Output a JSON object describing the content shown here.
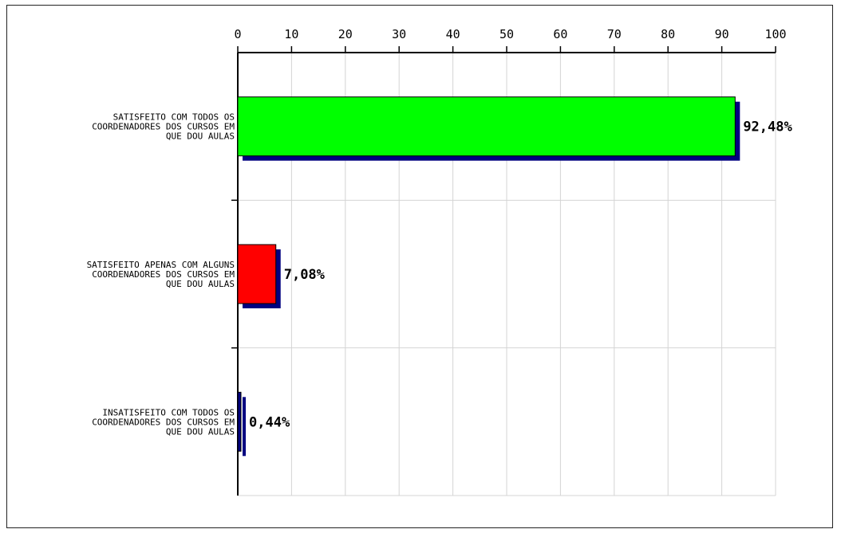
{
  "chart_data": {
    "type": "bar",
    "orientation": "horizontal",
    "categories": [
      [
        "SATISFEITO COM TODOS OS",
        "COORDENADORES DOS CURSOS EM",
        "QUE DOU AULAS"
      ],
      [
        "SATISFEITO APENAS COM ALGUNS",
        "COORDENADORES DOS CURSOS EM",
        "QUE DOU AULAS"
      ],
      [
        "INSATISFEITO COM TODOS OS",
        "COORDENADORES DOS CURSOS EM",
        "QUE DOU AULAS"
      ]
    ],
    "values": [
      92.48,
      7.08,
      0.44
    ],
    "value_labels": [
      "92,48%",
      "7,08%",
      "0,44%"
    ],
    "bar_colors": [
      "#00ff00",
      "#ff0000",
      "#000080"
    ],
    "shadow_color": "#000080",
    "xlim": [
      0,
      100
    ],
    "x_ticks": [
      "0",
      "10",
      "20",
      "30",
      "40",
      "50",
      "60",
      "70",
      "80",
      "90",
      "100"
    ],
    "tick_positions": [
      0,
      10,
      20,
      30,
      40,
      50,
      60,
      70,
      80,
      90,
      100
    ],
    "grid": true,
    "axis_position": "top"
  }
}
